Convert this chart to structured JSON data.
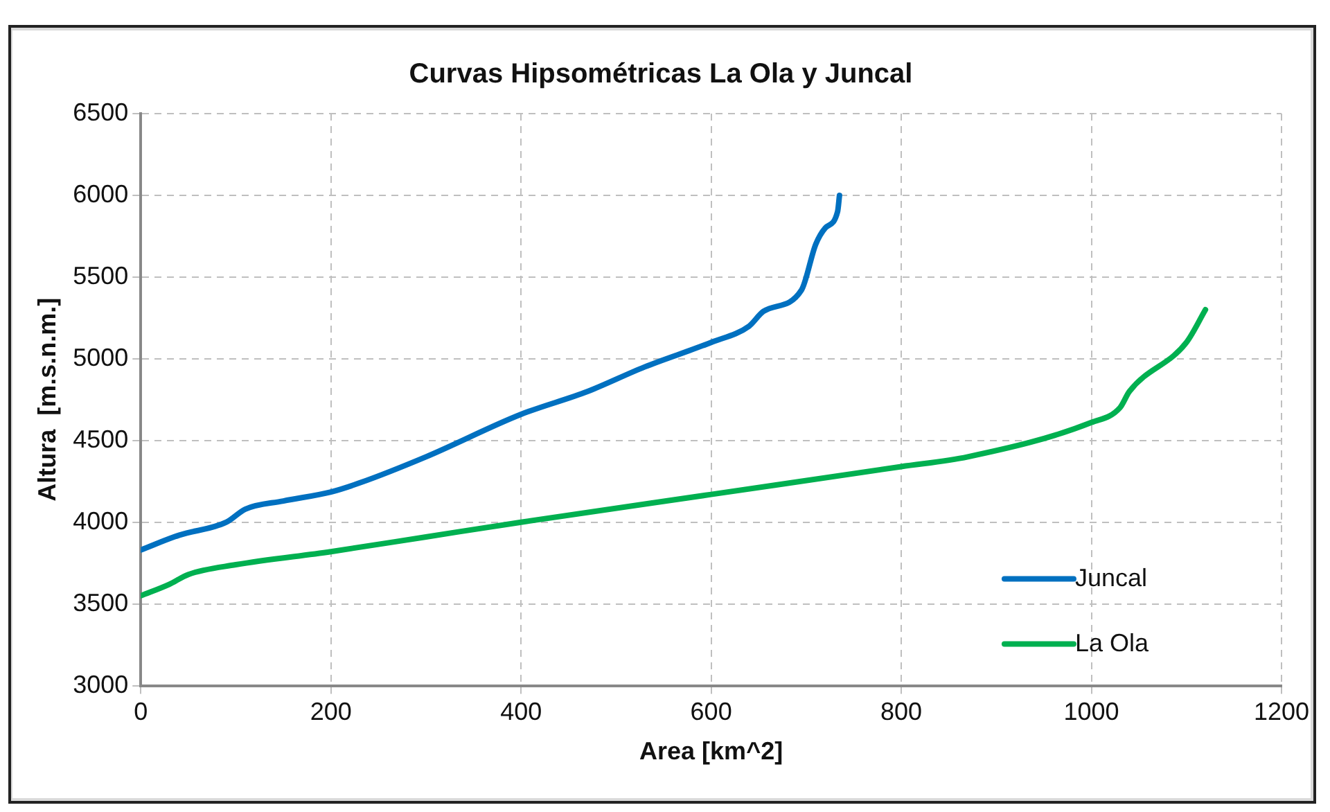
{
  "chart_data": {
    "type": "line",
    "title": "Curvas Hipsométricas La Ola y Juncal",
    "xlabel": "Area [km^2]",
    "ylabel": "Altura  [m.s.n.m.]",
    "xlim": [
      0,
      1200
    ],
    "xticks": [
      0,
      200,
      400,
      600,
      800,
      1000,
      1200
    ],
    "ylim": [
      3000,
      6500
    ],
    "yticks": [
      3000,
      3500,
      4000,
      4500,
      5000,
      5500,
      6000,
      6500
    ],
    "grid": true,
    "legend": "bottom right",
    "marker": "none",
    "line_style": "solid",
    "series": [
      {
        "name": "Juncal",
        "color": "#0070c0",
        "x": [
          0,
          40,
          90,
          110,
          150,
          200,
          230,
          300,
          400,
          470,
          530,
          600,
          640,
          655,
          695,
          710,
          720,
          733,
          735
        ],
        "values": [
          3830,
          3920,
          4000,
          4080,
          4130,
          4185,
          4240,
          4400,
          4660,
          4800,
          4950,
          5100,
          5200,
          5290,
          5420,
          5700,
          5800,
          5900,
          6000
        ]
      },
      {
        "name": "La Ola",
        "color": "#00b050",
        "x": [
          0,
          30,
          50,
          100,
          200,
          300,
          400,
          600,
          800,
          870,
          1000,
          1030,
          1040,
          1100,
          1120
        ],
        "values": [
          3550,
          3620,
          3680,
          3740,
          3820,
          3910,
          4000,
          4170,
          4340,
          4400,
          4610,
          4700,
          4800,
          5100,
          5300
        ]
      }
    ]
  }
}
